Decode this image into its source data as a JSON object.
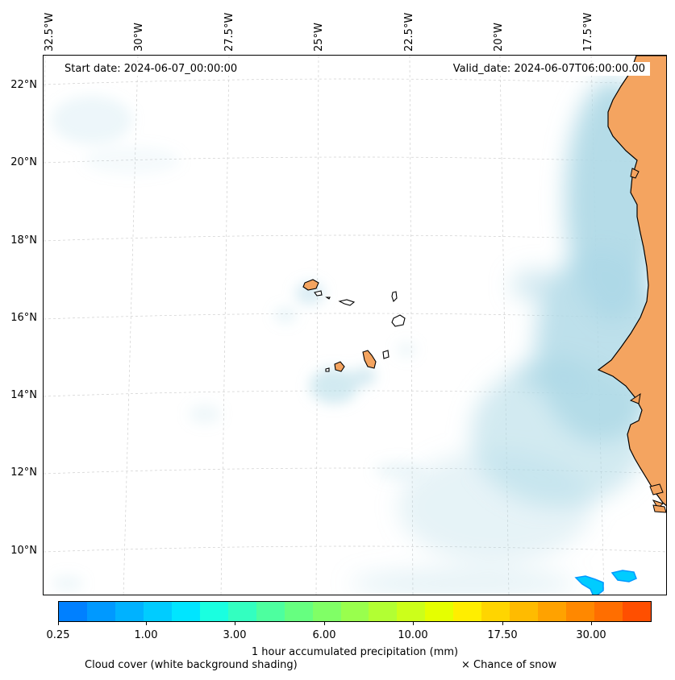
{
  "map": {
    "start_date": "Start date: 2024-06-07_00:00:00",
    "valid_date": "Valid_date: 2024-06-07T06:00:00.00",
    "lon_labels": [
      "32.5°W",
      "30°W",
      "27.5°W",
      "25°W",
      "22.5°W",
      "20°W",
      "17.5°W"
    ],
    "lat_labels": [
      "22°N",
      "20°N",
      "18°N",
      "16°N",
      "14°N",
      "12°N",
      "10°N"
    ]
  },
  "colorbar": {
    "colors": [
      "#0080ff",
      "#0099ff",
      "#00b2ff",
      "#00ccff",
      "#00e5ff",
      "#1affe0",
      "#33ffc0",
      "#4dff9f",
      "#66ff80",
      "#80ff66",
      "#99ff4d",
      "#b2ff33",
      "#ccff1a",
      "#e5ff00",
      "#ffee00",
      "#ffd500",
      "#ffbb00",
      "#ffa200",
      "#ff8800",
      "#ff6e00",
      "#ff4f00"
    ],
    "tick_labels": [
      "0.25",
      "1.00",
      "3.00",
      "6.00",
      "10.00",
      "17.50",
      "30.00"
    ],
    "title": "1 hour accumulated precipitation (mm)"
  },
  "legend": {
    "cloud_cover": "Cloud cover (white background shading)",
    "snow": "× Chance of snow"
  },
  "colors": {
    "land": "#f4a460",
    "cloud": "#add8e6",
    "precip_light": "#00ccff",
    "precip_dark": "#0099ff"
  }
}
